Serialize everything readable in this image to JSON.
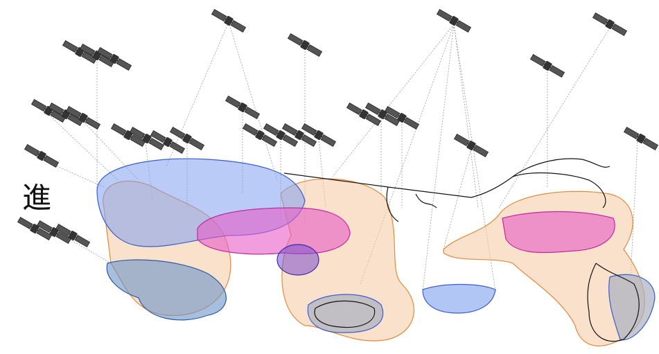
{
  "text": {
    "label": "進"
  }
}
